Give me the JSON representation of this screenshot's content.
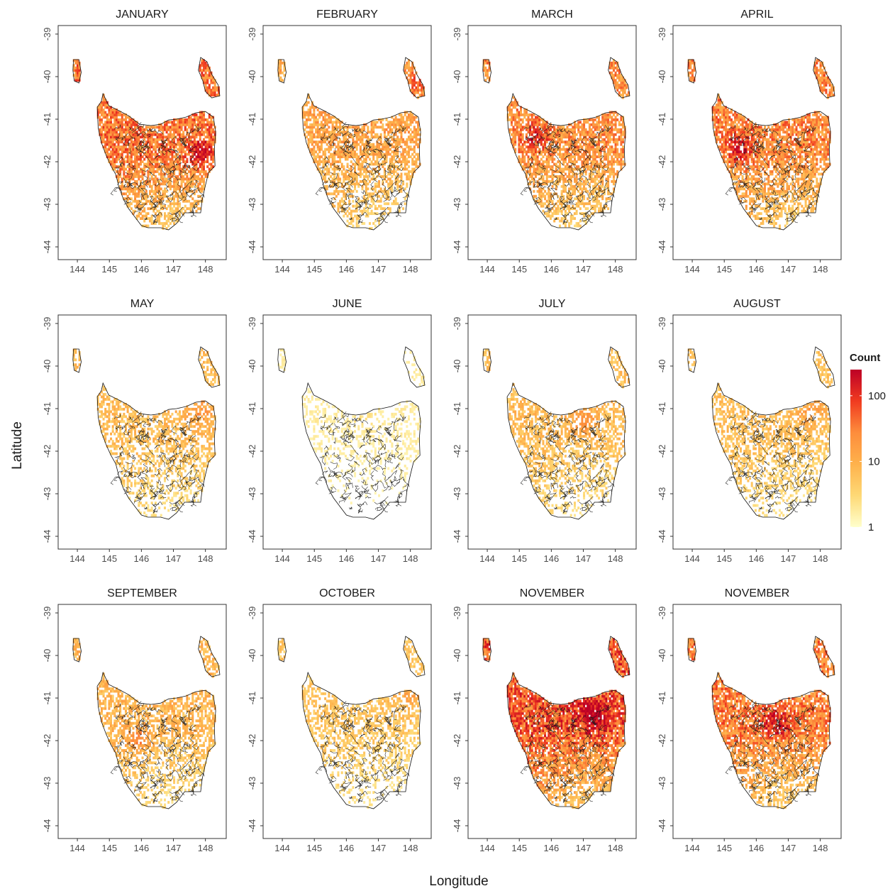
{
  "figure": {
    "xlabel": "Longitude",
    "ylabel": "Latitude"
  },
  "legend": {
    "title": "Count",
    "scale": "log",
    "range": [
      1,
      250
    ],
    "ticks": [
      {
        "value": 1,
        "label": "1"
      },
      {
        "value": 10,
        "label": "10"
      },
      {
        "value": 100,
        "label": "100"
      }
    ],
    "colors": [
      "#ffffcc",
      "#fed976",
      "#feb24c",
      "#fd8d3c",
      "#f03b20",
      "#bd0026"
    ]
  },
  "axes": {
    "xlim": [
      143.4,
      148.65
    ],
    "ylim": [
      -44.3,
      -38.8
    ],
    "x_ticks": [
      {
        "value": 144,
        "label": "144"
      },
      {
        "value": 145,
        "label": "145"
      },
      {
        "value": 146,
        "label": "146"
      },
      {
        "value": 147,
        "label": "147"
      },
      {
        "value": 148,
        "label": "148"
      }
    ],
    "y_ticks": [
      {
        "value": -39,
        "label": "-39"
      },
      {
        "value": -40,
        "label": "-40"
      },
      {
        "value": -41,
        "label": "-41"
      },
      {
        "value": -42,
        "label": "-42"
      },
      {
        "value": -43,
        "label": "-43"
      },
      {
        "value": -44,
        "label": "-44"
      }
    ]
  },
  "map_data": {
    "type": "heatmap",
    "region": "Tasmania",
    "panels": [
      {
        "title": "JANUARY",
        "intensity": 0.75,
        "hotspot": [
          147.9,
          -41.8
        ]
      },
      {
        "title": "FEBRUARY",
        "intensity": 0.55,
        "hotspot": [
          148.1,
          -40.1
        ]
      },
      {
        "title": "MARCH",
        "intensity": 0.65,
        "hotspot": [
          145.5,
          -41.4
        ]
      },
      {
        "title": "APRIL",
        "intensity": 0.7,
        "hotspot": [
          145.5,
          -41.7
        ]
      },
      {
        "title": "MAY",
        "intensity": 0.4,
        "hotspot": [
          147.8,
          -41.1
        ]
      },
      {
        "title": "JUNE",
        "intensity": 0.12,
        "hotspot": [
          146.6,
          -41.2
        ]
      },
      {
        "title": "JULY",
        "intensity": 0.4,
        "hotspot": [
          147.0,
          -41.3
        ]
      },
      {
        "title": "AUGUST",
        "intensity": 0.38,
        "hotspot": [
          147.7,
          -41.1
        ]
      },
      {
        "title": "SEPTEMBER",
        "intensity": 0.45,
        "hotspot": [
          145.9,
          -42.0
        ]
      },
      {
        "title": "OCTOBER",
        "intensity": 0.35,
        "hotspot": [
          148.0,
          -40.9
        ]
      },
      {
        "title": "NOVEMBER",
        "intensity": 0.85,
        "hotspot": [
          147.3,
          -41.4
        ]
      },
      {
        "title": "NOVEMBER",
        "intensity": 0.72,
        "hotspot": [
          146.6,
          -41.6
        ]
      }
    ]
  }
}
